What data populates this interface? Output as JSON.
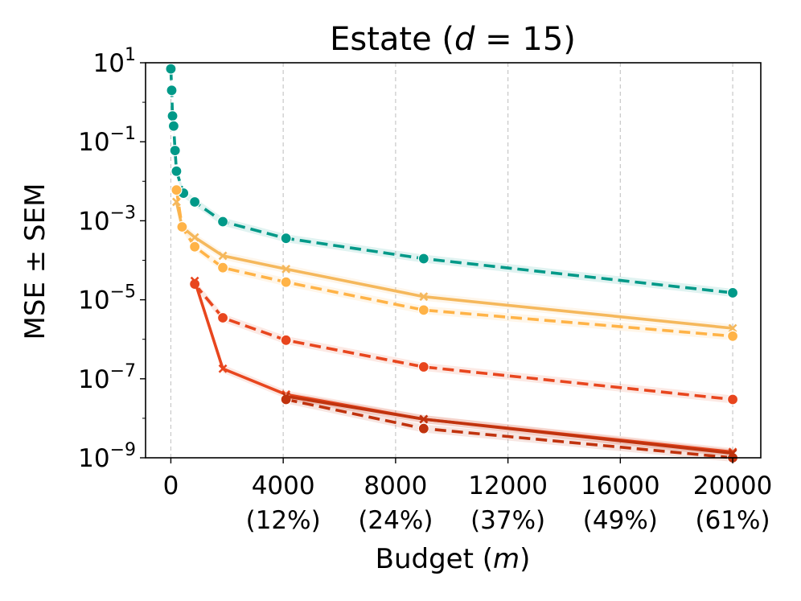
{
  "chart_data": {
    "type": "line",
    "title": "Estate (d = 15)",
    "title_parts": {
      "prefix": "Estate (",
      "var": "d",
      "suffix": " = 15)"
    },
    "xlabel": "Budget (m)",
    "xlabel_parts": {
      "prefix": "Budget (",
      "var": "m",
      "suffix": ")"
    },
    "ylabel": "MSE ± SEM",
    "yscale": "log",
    "xlim": [
      -900,
      21000
    ],
    "ylim_exp": [
      -9,
      1
    ],
    "grid": "vertical dashed",
    "xticks": [
      {
        "value": 0,
        "label": "0",
        "pct": ""
      },
      {
        "value": 4000,
        "label": "4000",
        "pct": "(12%)"
      },
      {
        "value": 8000,
        "label": "8000",
        "pct": "(24%)"
      },
      {
        "value": 12000,
        "label": "12000",
        "pct": "(37%)"
      },
      {
        "value": 16000,
        "label": "16000",
        "pct": "(49%)"
      },
      {
        "value": 20000,
        "label": "20000",
        "pct": "(61%)"
      }
    ],
    "yticks": [
      1,
      -1,
      -3,
      -5,
      -7,
      -9
    ],
    "series": [
      {
        "name": "teal-dashed-circle",
        "color": "#009988",
        "dash": "dashed",
        "marker": "circle",
        "x": [
          0,
          30,
          60,
          100,
          150,
          200,
          450,
          850,
          1850,
          4100,
          9000,
          20000
        ],
        "y": [
          7,
          2,
          0.45,
          0.25,
          0.06,
          0.018,
          0.005,
          0.003,
          0.00095,
          0.00036,
          0.00011,
          1.5e-05
        ]
      },
      {
        "name": "yellow-solid-x",
        "color": "#F5B85C",
        "dash": "solid",
        "marker": "x",
        "x": [
          200,
          400,
          850,
          1850,
          4100,
          9000,
          20000
        ],
        "y": [
          0.003,
          0.0007,
          0.00038,
          0.00013,
          6e-05,
          1.2e-05,
          1.9e-06
        ]
      },
      {
        "name": "yellow-dashed-circle",
        "color": "#FFB347",
        "dash": "dashed",
        "marker": "circle",
        "x": [
          200,
          400,
          850,
          1850,
          4100,
          9000,
          20000
        ],
        "y": [
          0.006,
          0.0007,
          0.00022,
          6.5e-05,
          2.8e-05,
          5.5e-06,
          1.2e-06
        ]
      },
      {
        "name": "orange-dashed-circle",
        "color": "#E8461E",
        "dash": "dashed",
        "marker": "circle",
        "x": [
          850,
          1850,
          4100,
          9000,
          20000
        ],
        "y": [
          2.5e-05,
          3.5e-06,
          9.5e-07,
          2e-07,
          3e-08
        ]
      },
      {
        "name": "orange-solid-x",
        "color": "#E8461E",
        "dash": "solid",
        "marker": "x",
        "x": [
          850,
          1850,
          4100,
          9000,
          20000
        ],
        "y": [
          3e-05,
          1.8e-07,
          4e-08,
          9.5e-09,
          1.4e-09
        ]
      },
      {
        "name": "darkred-dashed-circle",
        "color": "#C0330E",
        "dash": "dashed",
        "marker": "circle",
        "x": [
          4100,
          9000,
          20000
        ],
        "y": [
          3e-08,
          5.5e-09,
          1e-09
        ]
      },
      {
        "name": "darkred-solid-x",
        "color": "#C0330E",
        "dash": "solid",
        "marker": "x",
        "x": [
          4100,
          9000,
          20000
        ],
        "y": [
          3.6e-08,
          9.5e-09,
          1.3e-09
        ]
      }
    ]
  }
}
